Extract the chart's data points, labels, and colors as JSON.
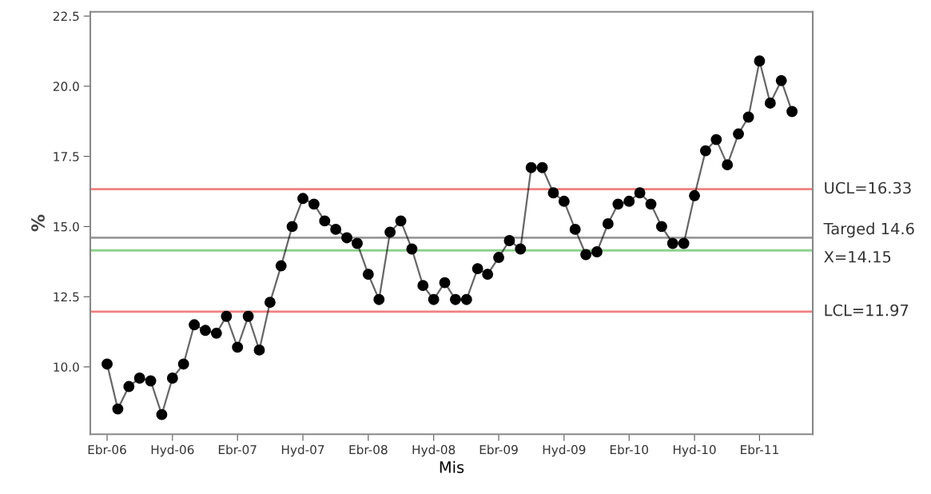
{
  "chart_data": {
    "type": "line",
    "xlabel": "Mis",
    "ylabel": "%",
    "x": [
      "2006-04",
      "2006-05",
      "2006-06",
      "2006-07",
      "2006-08",
      "2006-09",
      "2006-10",
      "2006-11",
      "2006-12",
      "2007-01",
      "2007-02",
      "2007-03",
      "2007-04",
      "2007-05",
      "2007-06",
      "2007-07",
      "2007-08",
      "2007-09",
      "2007-10",
      "2007-11",
      "2007-12",
      "2008-01",
      "2008-02",
      "2008-03",
      "2008-04",
      "2008-05",
      "2008-06",
      "2008-07",
      "2008-08",
      "2008-09",
      "2008-10",
      "2008-11",
      "2008-12",
      "2009-01",
      "2009-02",
      "2009-03",
      "2009-04",
      "2009-05",
      "2009-06",
      "2009-07",
      "2009-08",
      "2009-09",
      "2009-10",
      "2009-11",
      "2009-12",
      "2010-01",
      "2010-02",
      "2010-03",
      "2010-04",
      "2010-05",
      "2010-06",
      "2010-07",
      "2010-08",
      "2010-09",
      "2010-10",
      "2010-11",
      "2010-12",
      "2011-01",
      "2011-02",
      "2011-03",
      "2011-04",
      "2011-05",
      "2011-06",
      "2011-07"
    ],
    "series": [
      {
        "color": "#000000",
        "values": [
          10.1,
          8.5,
          9.3,
          9.6,
          9.5,
          8.3,
          9.6,
          10.1,
          11.5,
          11.3,
          11.2,
          11.8,
          10.7,
          11.8,
          10.6,
          12.3,
          13.6,
          15.0,
          16.0,
          15.8,
          15.2,
          14.9,
          14.6,
          14.4,
          13.3,
          12.4,
          14.8,
          15.2,
          14.2,
          12.9,
          12.4,
          13.0,
          12.4,
          12.4,
          13.5,
          13.3,
          13.9,
          14.5,
          14.2,
          17.1,
          17.1,
          16.2,
          15.9,
          14.9,
          14.0,
          14.1,
          15.1,
          15.8,
          15.9,
          16.2,
          15.8,
          15.0,
          14.4,
          14.4,
          16.1,
          17.7,
          18.1,
          17.2,
          18.3,
          18.9,
          20.9,
          19.4,
          20.2,
          19.1
        ]
      }
    ],
    "marker": "circle",
    "line_style": "solid",
    "grid": false,
    "legend": false,
    "xlim": [
      "2006-02-13",
      "2011-08-28"
    ],
    "xticks": [
      {
        "value": "2006-04",
        "label": "Ebr-06"
      },
      {
        "value": "2006-10",
        "label": "Hyd-06"
      },
      {
        "value": "2007-04",
        "label": "Ebr-07"
      },
      {
        "value": "2007-10",
        "label": "Hyd-07"
      },
      {
        "value": "2008-04",
        "label": "Ebr-08"
      },
      {
        "value": "2008-10",
        "label": "Hyd-08"
      },
      {
        "value": "2009-04",
        "label": "Ebr-09"
      },
      {
        "value": "2009-10",
        "label": "Hyd-09"
      },
      {
        "value": "2010-04",
        "label": "Ebr-10"
      },
      {
        "value": "2010-10",
        "label": "Hyd-10"
      },
      {
        "value": "2011-04",
        "label": "Ebr-11"
      }
    ],
    "ylim": [
      7.6,
      22.65
    ],
    "yticks": [
      {
        "value": 10,
        "label": "10.0"
      },
      {
        "value": 12.5,
        "label": "12.5"
      },
      {
        "value": 15,
        "label": "15.0"
      },
      {
        "value": 17.5,
        "label": "17.5"
      },
      {
        "value": 20,
        "label": "20.0"
      },
      {
        "value": 22.5,
        "label": "22.5"
      }
    ],
    "ref_lines": [
      {
        "axis": "y",
        "value": 16.33,
        "label": "UCL=16.33",
        "color": "#f08080"
      },
      {
        "axis": "y",
        "value": 14.6,
        "label": "Targed 14.6",
        "color": "#999999"
      },
      {
        "axis": "y",
        "value": 14.15,
        "label": "X=14.15",
        "color": "#8fd18f"
      },
      {
        "axis": "y",
        "value": 11.97,
        "label": "LCL=11.97",
        "color": "#f08080"
      }
    ]
  }
}
